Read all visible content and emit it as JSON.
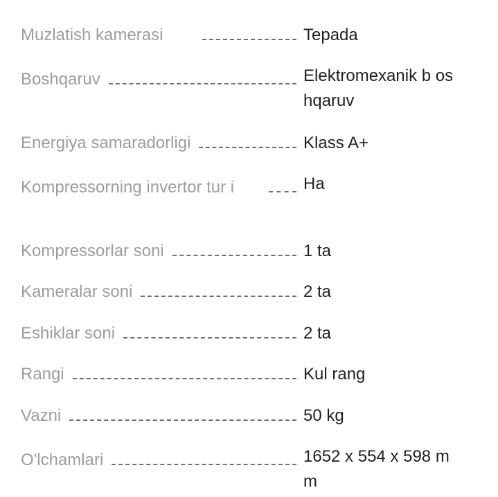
{
  "specs": [
    {
      "label": "Muzlatish kamerasi",
      "value": "Tepada"
    },
    {
      "label": "Boshqaruv",
      "value": "Elektromexanik b oshqaruv"
    },
    {
      "label": "Energiya samaradorligi",
      "value": "Klass A+"
    },
    {
      "label": "Kompressorning invertor tur i",
      "value": "Ha"
    },
    {
      "label": "Kompressorlar soni",
      "value": "1 ta"
    },
    {
      "label": "Kameralar soni",
      "value": "2 ta"
    },
    {
      "label": "Eshiklar soni",
      "value": "2 ta"
    },
    {
      "label": "Rangi",
      "value": "Kul rang"
    },
    {
      "label": "Vazni",
      "value": "50 kg"
    },
    {
      "label": "O'lchamlari",
      "value": "1652 x 554 x 598 mm"
    }
  ]
}
